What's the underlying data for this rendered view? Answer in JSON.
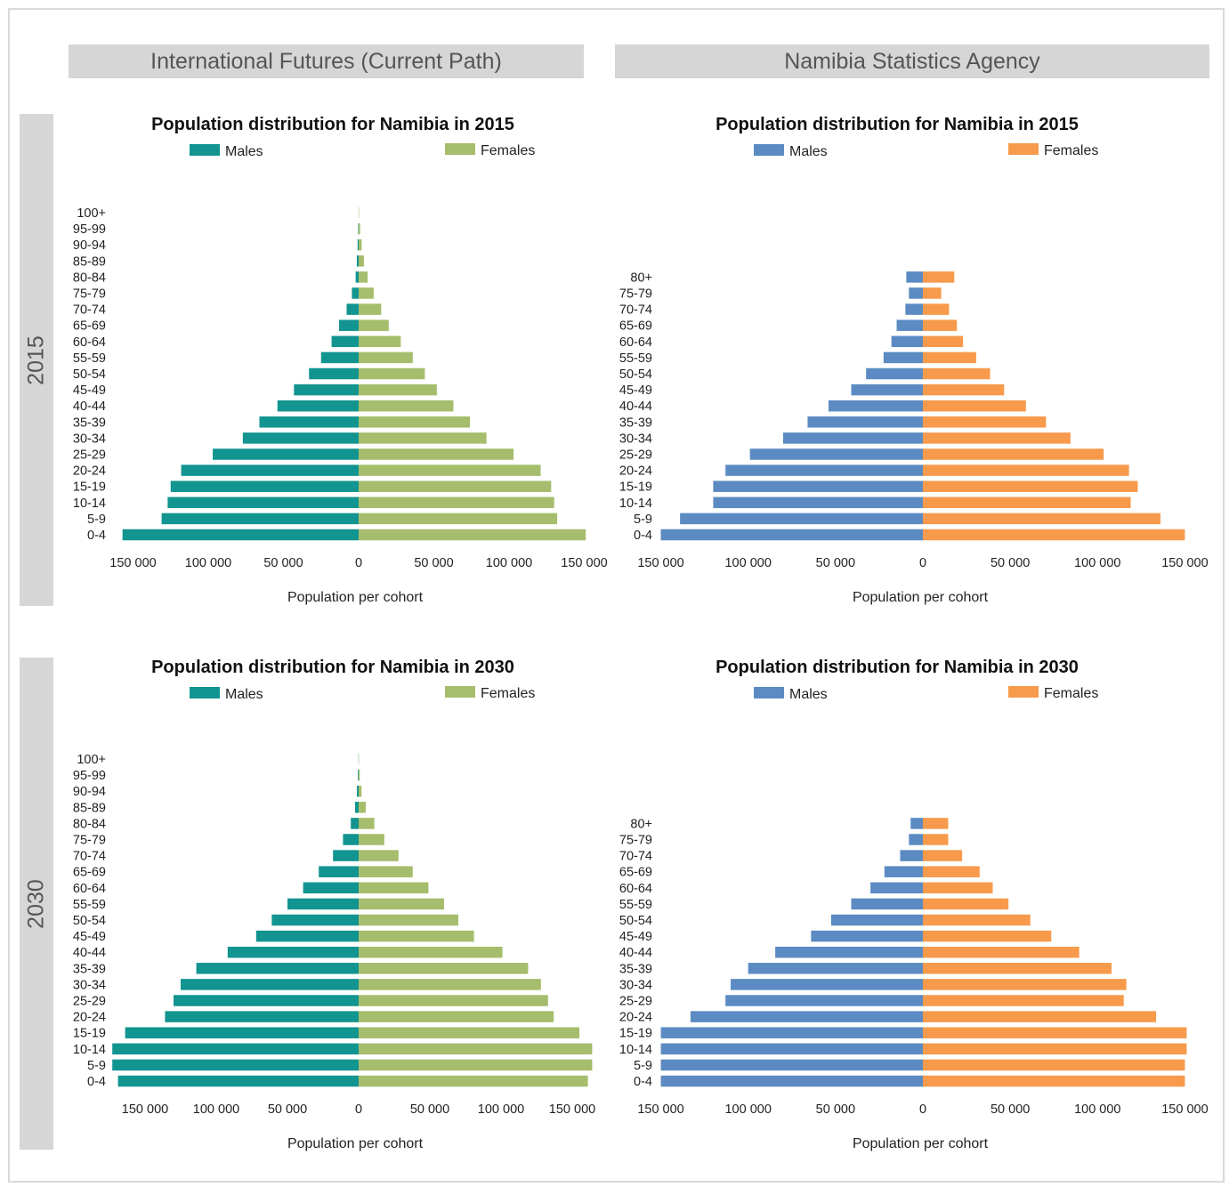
{
  "column_headers": [
    "International Futures (Current Path)",
    "Namibia Statistics Agency"
  ],
  "row_headers": [
    "2015",
    "2030"
  ],
  "colors": {
    "ifs_males": "#129490",
    "ifs_females": "#a5bd6c",
    "nsa_males": "#5b8bc2",
    "nsa_females": "#f79a4c",
    "header_bg": "#d6d6d6"
  },
  "chart_data": [
    {
      "type": "bar",
      "orientation": "horizontal-pyramid",
      "title": "Population distribution for Namibia in 2015",
      "xlabel": "Population per cohort",
      "xlim": [
        -150000,
        150000
      ],
      "xticks": [
        -150000,
        -100000,
        -50000,
        0,
        50000,
        100000,
        150000
      ],
      "xtick_labels": [
        "150 000",
        "100 000",
        "50 000",
        "0",
        "50 000",
        "100 000",
        "150 000"
      ],
      "legend": [
        "Males",
        "Females"
      ],
      "categories": [
        "0-4",
        "5-9",
        "10-14",
        "15-19",
        "20-24",
        "25-29",
        "30-34",
        "35-39",
        "40-44",
        "45-49",
        "50-54",
        "55-59",
        "60-64",
        "65-69",
        "70-74",
        "75-79",
        "80-84",
        "85-89",
        "90-94",
        "95-99",
        "100+"
      ],
      "series": [
        {
          "name": "Males",
          "values": [
            157000,
            131000,
            127000,
            125000,
            118000,
            97000,
            77000,
            66000,
            54000,
            43000,
            33000,
            25000,
            18000,
            13000,
            8000,
            4500,
            2000,
            1200,
            700,
            300,
            50
          ]
        },
        {
          "name": "Females",
          "values": [
            151000,
            132000,
            130000,
            128000,
            121000,
            103000,
            85000,
            74000,
            63000,
            52000,
            44000,
            36000,
            28000,
            20000,
            15000,
            10000,
            6000,
            3500,
            2000,
            1000,
            200
          ]
        }
      ]
    },
    {
      "type": "bar",
      "orientation": "horizontal-pyramid",
      "title": "Population distribution for Namibia in 2015",
      "xlabel": "Population per cohort",
      "xlim": [
        -150000,
        150000
      ],
      "xticks": [
        -150000,
        -100000,
        -50000,
        0,
        50000,
        100000,
        150000
      ],
      "xtick_labels": [
        "150 000",
        "100 000",
        "50 000",
        "0",
        "50 000",
        "100 000",
        "150 000"
      ],
      "legend": [
        "Males",
        "Females"
      ],
      "categories": [
        "0-4",
        "5-9",
        "10-14",
        "15-19",
        "20-24",
        "25-29",
        "30-34",
        "35-39",
        "40-44",
        "45-49",
        "50-54",
        "55-59",
        "60-64",
        "65-69",
        "70-74",
        "75-79",
        "80+"
      ],
      "series": [
        {
          "name": "Males",
          "values": [
            150000,
            139000,
            120000,
            120000,
            113000,
            99000,
            80000,
            66000,
            54000,
            41000,
            32500,
            22500,
            18000,
            15000,
            10000,
            8000,
            9500
          ]
        },
        {
          "name": "Females",
          "values": [
            150000,
            136000,
            119000,
            123000,
            118000,
            103500,
            84500,
            70500,
            59000,
            46500,
            38500,
            30500,
            23000,
            19500,
            15000,
            10500,
            18000
          ]
        }
      ]
    },
    {
      "type": "bar",
      "orientation": "horizontal-pyramid",
      "title": "Population distribution for Namibia in 2030",
      "xlabel": "Population per cohort",
      "xlim": [
        -150000,
        150000
      ],
      "xticks": [
        -150000,
        -100000,
        -50000,
        0,
        50000,
        100000,
        150000
      ],
      "xtick_labels": [
        "150 000",
        "100 000",
        "50 000",
        "0",
        "50 000",
        "100 000",
        "150 000"
      ],
      "legend": [
        "Males",
        "Females"
      ],
      "categories": [
        "0-4",
        "5-9",
        "10-14",
        "15-19",
        "20-24",
        "25-29",
        "30-34",
        "35-39",
        "40-44",
        "45-49",
        "50-54",
        "55-59",
        "60-64",
        "65-69",
        "70-74",
        "75-79",
        "80-84",
        "85-89",
        "90-94",
        "95-99",
        "100+"
      ],
      "series": [
        {
          "name": "Males",
          "values": [
            169000,
            173000,
            173000,
            164000,
            136000,
            130000,
            125000,
            114000,
            92000,
            72000,
            61000,
            50000,
            39000,
            28000,
            18000,
            11000,
            5500,
            2500,
            1200,
            500,
            100
          ]
        },
        {
          "name": "Females",
          "values": [
            161000,
            164000,
            164000,
            155000,
            137000,
            133000,
            128000,
            119000,
            101000,
            81000,
            70000,
            60000,
            49000,
            38000,
            28000,
            18000,
            11000,
            5000,
            2000,
            800,
            200
          ]
        }
      ]
    },
    {
      "type": "bar",
      "orientation": "horizontal-pyramid",
      "title": "Population distribution for Namibia in 2030",
      "xlabel": "Population per cohort",
      "xlim": [
        -150000,
        150000
      ],
      "xticks": [
        -150000,
        -100000,
        -50000,
        0,
        50000,
        100000,
        150000
      ],
      "xtick_labels": [
        "150 000",
        "100 000",
        "50 000",
        "0",
        "50 000",
        "100 000",
        "150 000"
      ],
      "legend": [
        "Males",
        "Females"
      ],
      "categories": [
        "0-4",
        "5-9",
        "10-14",
        "15-19",
        "20-24",
        "25-29",
        "30-34",
        "35-39",
        "40-44",
        "45-49",
        "50-54",
        "55-59",
        "60-64",
        "65-69",
        "70-74",
        "75-79",
        "80+"
      ],
      "series": [
        {
          "name": "Males",
          "values": [
            150000,
            150000,
            150000,
            150000,
            133000,
            113000,
            110000,
            100000,
            84500,
            64000,
            52500,
            41000,
            30000,
            22000,
            13000,
            8000,
            7000
          ]
        },
        {
          "name": "Females",
          "values": [
            150000,
            150000,
            151000,
            151000,
            133500,
            115000,
            116500,
            108000,
            89500,
            73500,
            61500,
            49000,
            40000,
            32500,
            22500,
            14500,
            14500
          ]
        }
      ]
    }
  ]
}
